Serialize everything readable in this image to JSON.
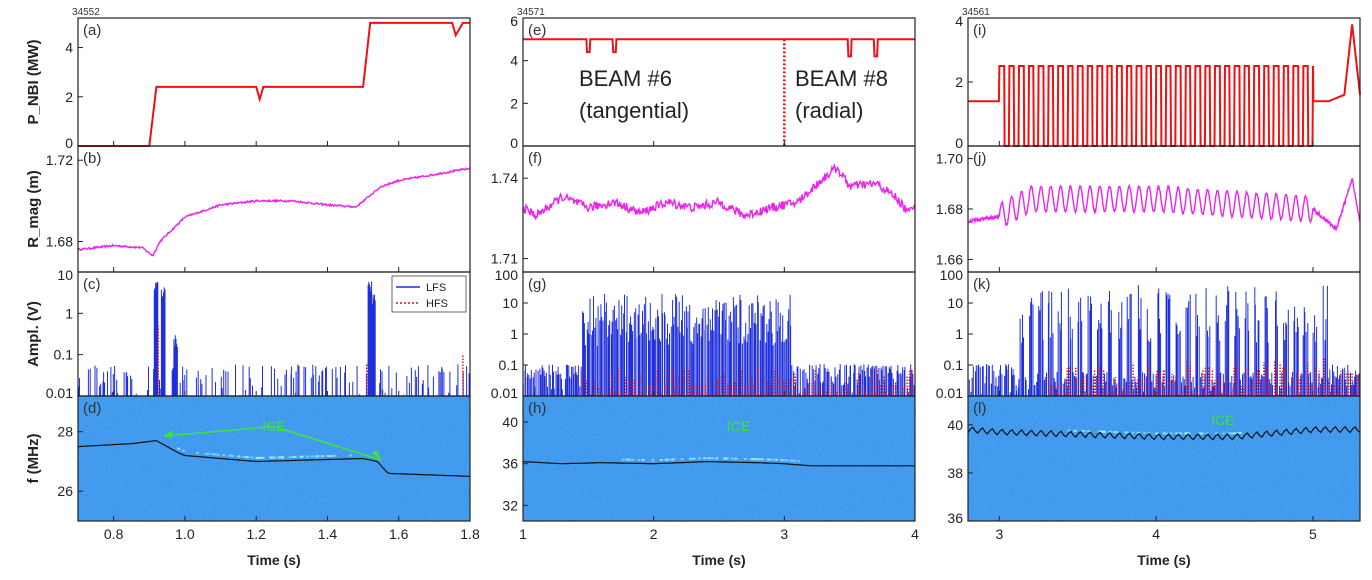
{
  "colors": {
    "pnbi": "#ee1111",
    "rmag": "#ee22ee",
    "lfs": "#1f2fdc",
    "hfs": "#dd1111",
    "spectrogram": "#1f8be8",
    "ice_text": "#39e639",
    "freq_trace": "#111111"
  },
  "figure": {
    "y_labels": {
      "pnbi": "P_NBI (MW)",
      "rmag": "R_mag (m)",
      "ampl": "Ampl. (V)",
      "freq": "f (MHz)"
    },
    "legend": {
      "lfs": "LFS",
      "hfs": "HFS"
    },
    "columns": [
      {
        "shot": "34552",
        "x_label": "Time (s)",
        "x_ticks": [
          "0.8",
          "1.0",
          "1.2",
          "1.4",
          "1.6",
          "1.8"
        ],
        "panel_letters": [
          "(a)",
          "(b)",
          "(c)",
          "(d)"
        ],
        "tick_labels": {
          "pnbi": [
            "0",
            "2",
            "4"
          ],
          "rmag": [
            "1.68",
            "1.72"
          ],
          "ampl": [
            "0.01",
            "0.1",
            "1",
            "10"
          ],
          "freq": [
            "26",
            "28"
          ]
        },
        "ice_label": "ICE"
      },
      {
        "shot": "34571",
        "x_label": "Time (s)",
        "x_ticks": [
          "1",
          "2",
          "3",
          "4"
        ],
        "panel_letters": [
          "(e)",
          "(f)",
          "(g)",
          "(h)"
        ],
        "tick_labels": {
          "pnbi": [
            "0",
            "2",
            "4",
            "6"
          ],
          "rmag": [
            "1.71",
            "1.74"
          ],
          "ampl": [
            "0.01",
            "0.1",
            "1",
            "10",
            "100"
          ],
          "freq": [
            "32",
            "36",
            "40"
          ]
        },
        "ice_label": "ICE",
        "beam_annotations": [
          {
            "line1": "BEAM #6",
            "line2": "(tangential)"
          },
          {
            "line1": "BEAM #8",
            "line2": "(radial)"
          }
        ]
      },
      {
        "shot": "34561",
        "x_label": "Time (s)",
        "x_ticks": [
          "3",
          "4",
          "5"
        ],
        "panel_letters": [
          "(i)",
          "(j)",
          "(k)",
          "(l)"
        ],
        "tick_labels": {
          "pnbi": [
            "0",
            "2",
            "4"
          ],
          "rmag": [
            "1.66",
            "1.68",
            "1.70"
          ],
          "ampl": [
            "0.01",
            "0.1",
            "1",
            "10",
            "100"
          ],
          "freq": [
            "36",
            "38",
            "40"
          ]
        },
        "ice_label": "ICE"
      }
    ]
  },
  "chart_data": [
    {
      "type": "line",
      "column": 0,
      "panel": "(a)",
      "shot": "34552",
      "ylabel": "P_NBI (MW)",
      "xlim": [
        0.7,
        1.8
      ],
      "ylim": [
        0,
        5.2
      ],
      "series": [
        {
          "x": [
            0.7,
            0.9,
            0.92,
            1.2,
            1.21,
            1.22,
            1.5,
            1.52,
            1.75,
            1.76,
            1.78,
            1.8
          ],
          "values": [
            0,
            0,
            2.4,
            2.4,
            1.9,
            2.4,
            2.4,
            5.0,
            5.0,
            4.5,
            5.0,
            5.0
          ]
        }
      ]
    },
    {
      "type": "line",
      "column": 0,
      "panel": "(b)",
      "ylabel": "R_mag (m)",
      "xlim": [
        0.7,
        1.8
      ],
      "ylim": [
        1.665,
        1.727
      ],
      "series": [
        {
          "x": [
            0.7,
            0.8,
            0.88,
            0.91,
            0.93,
            1.0,
            1.1,
            1.2,
            1.3,
            1.4,
            1.48,
            1.55,
            1.6,
            1.7,
            1.8
          ],
          "values": [
            1.676,
            1.678,
            1.677,
            1.673,
            1.68,
            1.692,
            1.698,
            1.7,
            1.7,
            1.698,
            1.697,
            1.707,
            1.71,
            1.713,
            1.716
          ]
        }
      ]
    },
    {
      "type": "line",
      "column": 0,
      "panel": "(c)",
      "yscale": "log",
      "ylabel": "Ampl. (V)",
      "xlim": [
        0.7,
        1.8
      ],
      "ylim": [
        0.01,
        10
      ],
      "series": [
        {
          "name": "LFS",
          "bursts": [
            [
              0.92,
              6
            ],
            [
              0.94,
              5
            ],
            [
              0.975,
              0.3
            ],
            [
              1.52,
              6
            ],
            [
              1.53,
              3
            ]
          ],
          "baseline": [
            0.01,
            0.05
          ]
        },
        {
          "name": "HFS",
          "bursts": [
            [
              0.925,
              0.5
            ],
            [
              1.51,
              0.06
            ],
            [
              1.78,
              0.1
            ]
          ]
        }
      ]
    },
    {
      "type": "heatmap",
      "column": 0,
      "panel": "(d)",
      "ylabel": "f (MHz)",
      "xlim": [
        0.7,
        1.8
      ],
      "ylim": [
        25,
        29.2
      ],
      "trace": {
        "x": [
          0.7,
          0.85,
          0.92,
          0.98,
          1.0,
          1.2,
          1.5,
          1.54,
          1.57,
          1.8
        ],
        "values": [
          27.5,
          27.6,
          27.7,
          27.3,
          27.2,
          27.0,
          27.1,
          27.0,
          26.6,
          26.5
        ]
      },
      "annotation": "ICE"
    },
    {
      "type": "line",
      "column": 1,
      "panel": "(e)",
      "shot": "34571",
      "ylabel": "P_NBI (MW)",
      "xlim": [
        1,
        4
      ],
      "ylim": [
        0,
        6
      ],
      "series": [
        {
          "x": [
            1,
            1.5,
            1.7,
            3.0,
            3.5,
            3.7,
            4
          ],
          "values": [
            5,
            5,
            5,
            5,
            5,
            5,
            5
          ],
          "dips": [
            [
              1.5,
              4.4
            ],
            [
              1.7,
              4.4
            ],
            [
              3.0,
              0
            ],
            [
              3.5,
              4.2
            ],
            [
              3.7,
              4.2
            ]
          ]
        }
      ]
    },
    {
      "type": "line",
      "column": 1,
      "panel": "(f)",
      "ylabel": "R_mag (m)",
      "xlim": [
        1,
        4
      ],
      "ylim": [
        1.705,
        1.752
      ],
      "series": [
        {
          "x": [
            1,
            1.1,
            1.3,
            1.5,
            1.7,
            1.9,
            2.1,
            2.3,
            2.5,
            2.7,
            2.9,
            3.1,
            3.3,
            3.4,
            3.5,
            3.7,
            3.85,
            3.95,
            4
          ],
          "values": [
            1.729,
            1.726,
            1.733,
            1.729,
            1.731,
            1.727,
            1.731,
            1.729,
            1.731,
            1.726,
            1.729,
            1.731,
            1.74,
            1.744,
            1.737,
            1.738,
            1.733,
            1.727,
            1.731
          ]
        }
      ]
    },
    {
      "type": "line",
      "column": 1,
      "panel": "(g)",
      "yscale": "log",
      "ylabel": "Ampl. (V)",
      "xlim": [
        1,
        4
      ],
      "ylim": [
        0.01,
        100
      ],
      "series": [
        {
          "name": "LFS",
          "active_ranges": [
            [
              1.45,
              3.05
            ]
          ],
          "peak": 20,
          "baseline": [
            0.05,
            0.1
          ]
        },
        {
          "name": "HFS",
          "active_ranges": [
            [
              1.45,
              4
            ]
          ],
          "peak": 1
        }
      ]
    },
    {
      "type": "heatmap",
      "column": 1,
      "panel": "(h)",
      "ylabel": "f (MHz)",
      "xlim": [
        1,
        4
      ],
      "ylim": [
        30.5,
        42.5
      ],
      "trace": {
        "x": [
          1,
          1.3,
          1.6,
          2.0,
          2.4,
          2.8,
          3.0,
          3.2,
          3.6,
          4
        ],
        "values": [
          36.2,
          36.0,
          36.1,
          36.0,
          36.2,
          36.1,
          36.0,
          35.8,
          35.8,
          35.8
        ]
      },
      "annotation": "ICE"
    },
    {
      "type": "line",
      "column": 2,
      "panel": "(i)",
      "shot": "34561",
      "ylabel": "P_NBI (MW)",
      "xlim": [
        2.8,
        5.3
      ],
      "ylim": [
        0,
        4
      ],
      "series": [
        {
          "x": [
            2.8,
            3.0,
            5.0,
            5.1,
            5.2,
            5.25,
            5.3
          ],
          "values": [
            1.4,
            1.4,
            1.4,
            1.4,
            1.6,
            3.8,
            1.6
          ],
          "modulation": {
            "from": 3.0,
            "to": 5.0,
            "period": 0.0625,
            "low": 0,
            "high": 2.5
          }
        }
      ]
    },
    {
      "type": "line",
      "column": 2,
      "panel": "(j)",
      "ylabel": "R_mag (m)",
      "xlim": [
        2.8,
        5.3
      ],
      "ylim": [
        1.655,
        1.705
      ],
      "series": [
        {
          "x": [
            2.8,
            3.0,
            3.2,
            4.0,
            5.0,
            5.15,
            5.25,
            5.3
          ],
          "values": [
            1.675,
            1.677,
            1.684,
            1.684,
            1.68,
            1.672,
            1.692,
            1.675
          ],
          "modulation": {
            "from": 3.0,
            "to": 5.0,
            "period": 0.0625,
            "amplitude": 0.005
          }
        }
      ]
    },
    {
      "type": "line",
      "column": 2,
      "panel": "(k)",
      "yscale": "log",
      "ylabel": "Ampl. (V)",
      "xlim": [
        2.8,
        5.3
      ],
      "ylim": [
        0.01,
        100
      ],
      "series": [
        {
          "name": "LFS",
          "active_ranges": [
            [
              3.1,
              5.1
            ]
          ],
          "peak": 40,
          "baseline": [
            0.01,
            0.1
          ]
        },
        {
          "name": "HFS",
          "active_ranges": [
            [
              3.3,
              5.3
            ]
          ],
          "peak": 2
        }
      ]
    },
    {
      "type": "heatmap",
      "column": 2,
      "panel": "(l)",
      "ylabel": "f (MHz)",
      "xlim": [
        2.8,
        5.3
      ],
      "ylim": [
        36,
        41.2
      ],
      "trace": {
        "x": [
          2.8,
          3.0,
          3.5,
          4.0,
          4.5,
          5.0,
          5.3
        ],
        "values": [
          39.8,
          39.7,
          39.6,
          39.5,
          39.5,
          39.8,
          39.8
        ]
      },
      "annotation": "ICE"
    }
  ]
}
